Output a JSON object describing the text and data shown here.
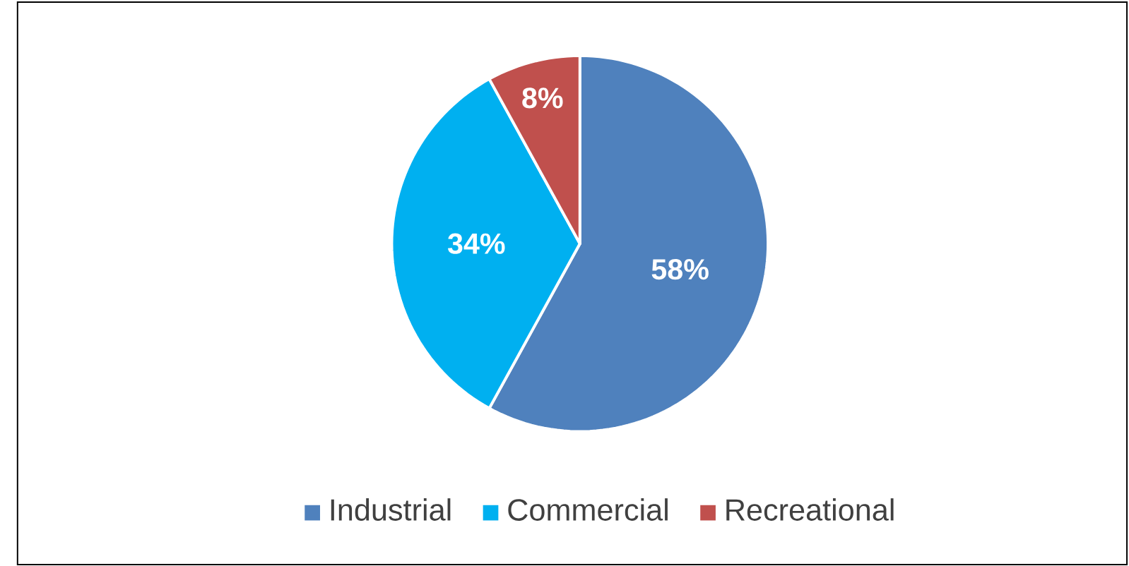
{
  "chart_data": {
    "type": "pie",
    "categories": [
      "Industrial",
      "Commercial",
      "Recreational"
    ],
    "values": [
      58,
      34,
      8
    ],
    "colors": [
      "#4f81bd",
      "#00b0f0",
      "#c0504d"
    ],
    "value_labels": [
      "58%",
      "34%",
      "8%"
    ],
    "legend": "bottom"
  }
}
